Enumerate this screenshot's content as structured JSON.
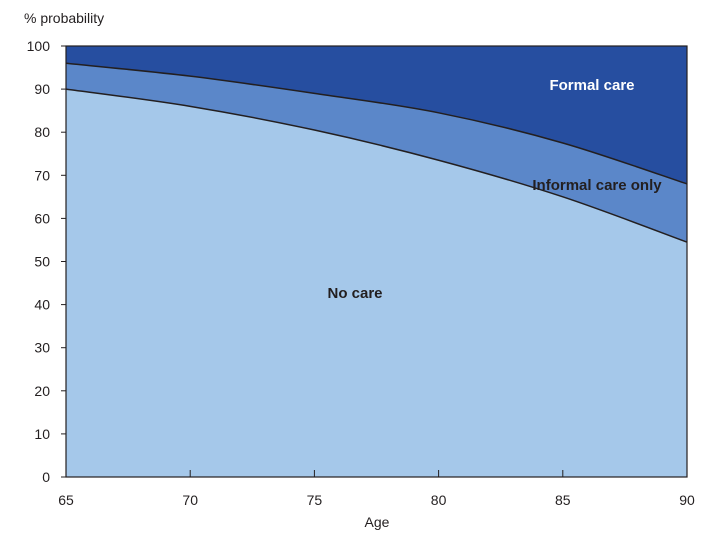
{
  "chart_data": {
    "type": "area",
    "stacked": true,
    "ylabel": "% probability",
    "xlabel": "Age",
    "xlim": [
      65,
      90
    ],
    "ylim": [
      0,
      100
    ],
    "x_ticks": [
      65,
      70,
      75,
      80,
      85,
      90
    ],
    "y_ticks": [
      0,
      10,
      20,
      30,
      40,
      50,
      60,
      70,
      80,
      90,
      100
    ],
    "x": [
      65,
      70,
      75,
      80,
      85,
      90
    ],
    "series": [
      {
        "name": "No care",
        "values": [
          90,
          86,
          80.5,
          73.5,
          65,
          54.5
        ],
        "color": "#a5c8ea"
      },
      {
        "name": "Informal care only",
        "values": [
          6,
          7,
          8.5,
          11,
          12.5,
          13.5
        ],
        "color": "#5b87c9"
      },
      {
        "name": "Formal care",
        "values": [
          4,
          7,
          11,
          15.5,
          22.5,
          32
        ],
        "color": "#264ea0"
      }
    ],
    "grid": false
  }
}
